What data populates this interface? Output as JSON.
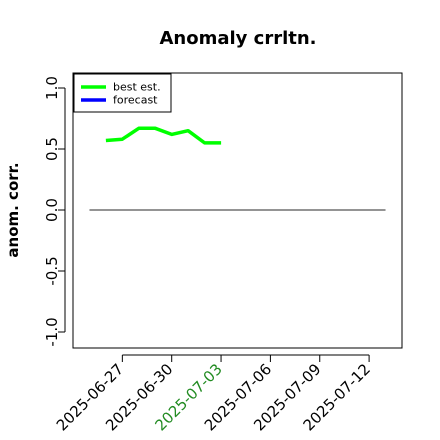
{
  "chart_data": {
    "type": "line",
    "title": "Anomaly crrltn.",
    "ylabel": "anom. corr.",
    "xlabel": "",
    "ylim": [
      -1.0,
      1.0
    ],
    "yticks": [
      "-1.0",
      "-0.5",
      "0.0",
      "0.5",
      "1.0"
    ],
    "yvalues": [
      -1.0,
      -0.5,
      0.0,
      0.5,
      1.0
    ],
    "xlim": [
      "2025-06-24",
      "2025-07-14"
    ],
    "xticks": [
      "2025-06-27",
      "2025-06-30",
      "2025-07-03",
      "2025-07-06",
      "2025-07-09",
      "2025-07-12"
    ],
    "xtick_colors": [
      "#000000",
      "#000000",
      "#228B22",
      "#000000",
      "#000000",
      "#000000"
    ],
    "reference_line": {
      "y": 0.0,
      "x_start": "2025-06-25",
      "x_end": "2025-07-13",
      "color": "#555555"
    },
    "legend": {
      "placement": "top-left",
      "entries": [
        "best est.",
        "forecast"
      ]
    },
    "series": [
      {
        "name": "best est.",
        "color": "#00ff00",
        "x": [
          "2025-06-26",
          "2025-06-27",
          "2025-06-28",
          "2025-06-29",
          "2025-06-30",
          "2025-07-01",
          "2025-07-02",
          "2025-07-03"
        ],
        "values": [
          0.57,
          0.58,
          0.67,
          0.67,
          0.62,
          0.65,
          0.55,
          0.55
        ]
      },
      {
        "name": "forecast",
        "color": "#0000ff",
        "x": [],
        "values": []
      }
    ]
  }
}
